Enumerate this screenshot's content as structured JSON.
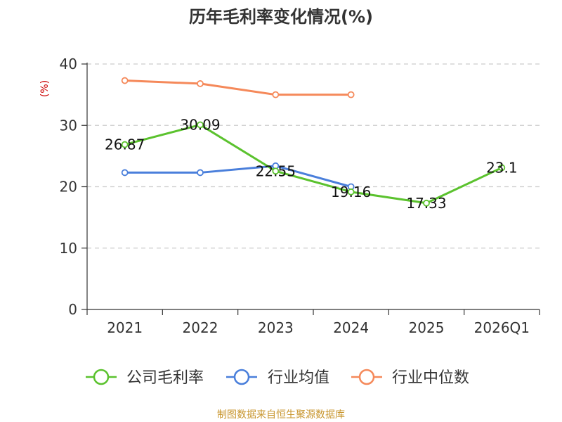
{
  "chart_data": {
    "type": "line",
    "title": "历年毛利率变化情况(%)",
    "ylabel": "(%)",
    "xlabel": "",
    "ylim": [
      0,
      40
    ],
    "yticks": [
      0,
      10,
      20,
      30,
      40
    ],
    "categories": [
      "2021",
      "2022",
      "2023",
      "2024",
      "2025",
      "2026Q1"
    ],
    "grid": true,
    "legend_position": "bottom",
    "series": [
      {
        "name": "公司毛利率",
        "color": "#5bc22e",
        "values": [
          26.87,
          30.09,
          22.55,
          19.16,
          17.33,
          23.1
        ],
        "labels": [
          "26.87",
          "30.09",
          "22.55",
          "19.16",
          "17.33",
          "23.1"
        ]
      },
      {
        "name": "行业均值",
        "color": "#4a7fdb",
        "values": [
          22.3,
          22.3,
          23.4,
          20.0,
          null,
          null
        ]
      },
      {
        "name": "行业中位数",
        "color": "#f5895a",
        "values": [
          37.3,
          36.8,
          35.0,
          35.0,
          null,
          null
        ]
      }
    ],
    "source": "制图数据来自恒生聚源数据库",
    "colors": {
      "ylabel": "#cc0000",
      "source": "#c8962e",
      "axis": "#333333",
      "grid": "#cccccc"
    }
  }
}
